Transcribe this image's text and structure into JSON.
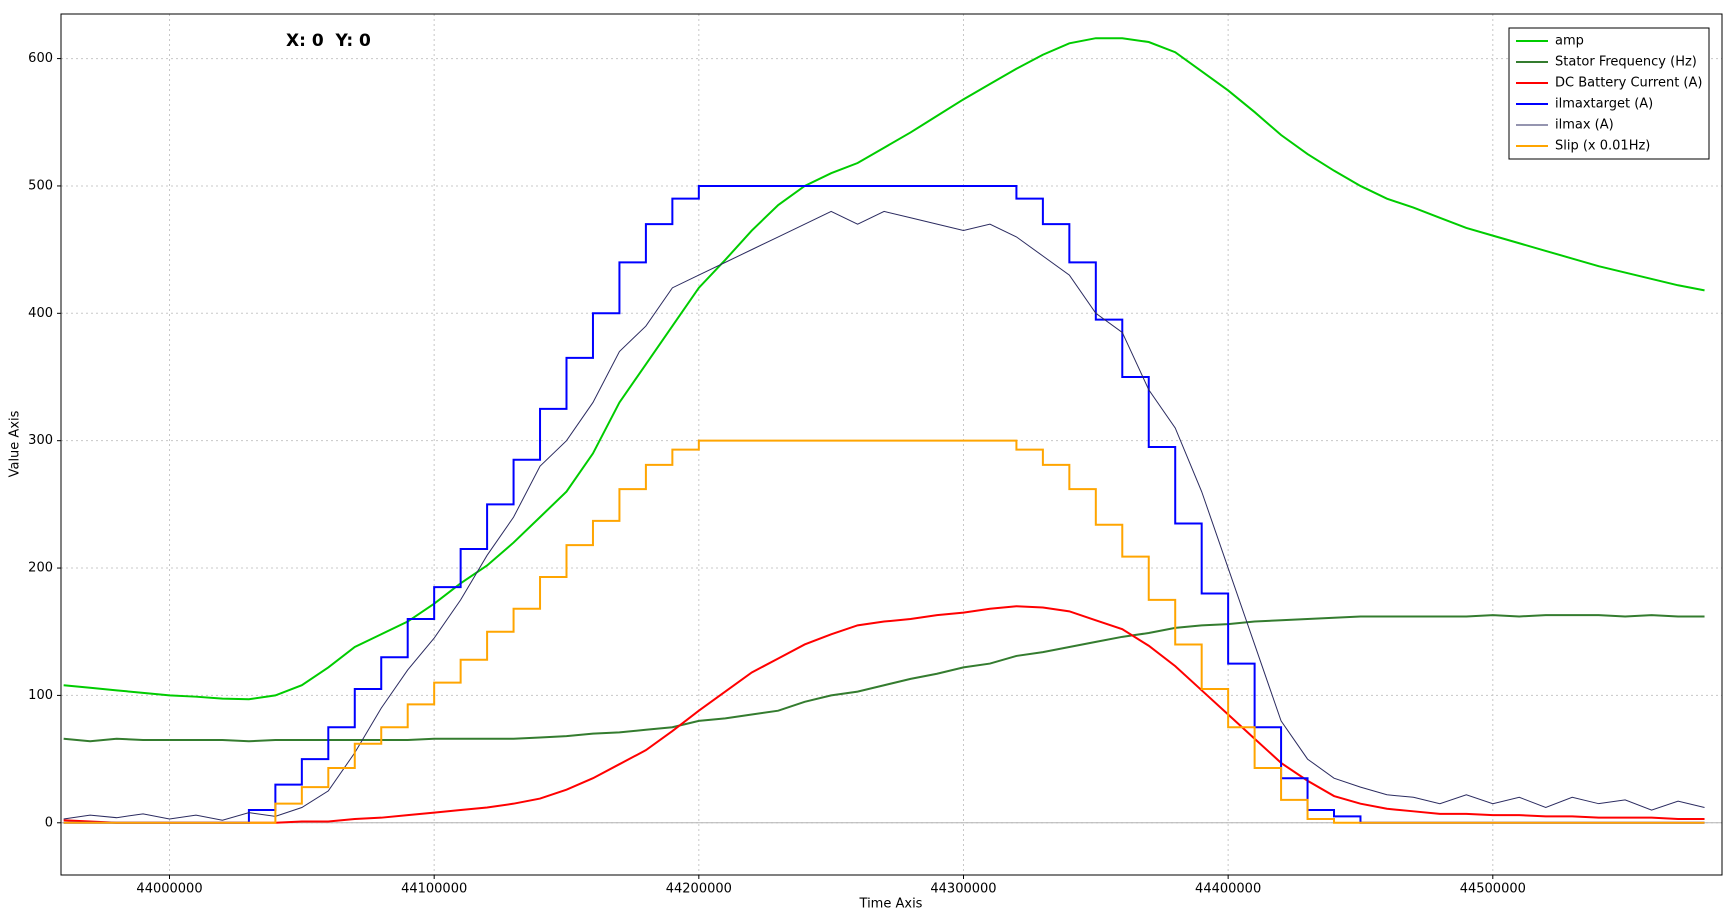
{
  "chart_data": {
    "type": "line",
    "title": "X: 0  Y: 0",
    "x_label": "Time Axis",
    "y_label": "Value Axis",
    "x": [
      43960000,
      43970000,
      43980000,
      43990000,
      44000000,
      44010000,
      44020000,
      44030000,
      44040000,
      44050000,
      44060000,
      44070000,
      44080000,
      44090000,
      44100000,
      44110000,
      44120000,
      44130000,
      44140000,
      44150000,
      44160000,
      44170000,
      44180000,
      44190000,
      44200000,
      44210000,
      44220000,
      44230000,
      44240000,
      44250000,
      44260000,
      44270000,
      44280000,
      44290000,
      44300000,
      44310000,
      44320000,
      44330000,
      44340000,
      44350000,
      44360000,
      44370000,
      44380000,
      44390000,
      44400000,
      44410000,
      44420000,
      44430000,
      44440000,
      44450000,
      44460000,
      44470000,
      44480000,
      44490000,
      44500000,
      44510000,
      44520000,
      44530000,
      44540000,
      44550000,
      44560000,
      44570000,
      44580000
    ],
    "series": [
      {
        "name": "amp",
        "color": "#00cc00",
        "width": 2,
        "values": [
          108,
          106,
          104,
          102,
          100,
          99,
          97.5,
          97,
          100,
          108,
          122,
          138,
          148,
          158,
          172,
          188,
          202,
          220,
          240,
          260,
          290,
          330,
          360,
          390,
          420,
          442,
          465,
          485,
          500,
          510,
          518,
          530,
          542,
          555,
          568,
          580,
          592,
          603,
          612,
          616,
          616,
          613,
          605,
          590,
          575,
          558,
          540,
          525,
          512,
          500,
          490,
          483,
          475,
          467,
          461,
          455,
          449,
          443,
          437,
          432,
          427,
          422,
          418
        ]
      },
      {
        "name": "Stator Frequency (Hz)",
        "color": "#347c2f",
        "width": 2,
        "values": [
          66,
          64,
          66,
          65,
          65,
          65,
          65,
          64,
          65,
          65,
          65,
          65,
          65,
          65,
          66,
          66,
          66,
          66,
          67,
          68,
          70,
          71,
          73,
          75,
          80,
          82,
          85,
          88,
          95,
          100,
          103,
          108,
          113,
          117,
          122,
          125,
          131,
          134,
          138,
          142,
          146,
          149,
          153,
          155,
          156,
          158,
          159,
          160,
          161,
          162,
          162,
          162,
          162,
          162,
          163,
          162,
          163,
          163,
          163,
          162,
          163,
          162,
          162
        ]
      },
      {
        "name": "DC Battery Current (A)",
        "color": "#ff0000",
        "width": 2,
        "values": [
          2,
          1,
          0,
          0,
          0,
          0,
          0,
          0,
          0,
          1,
          1,
          3,
          4,
          6,
          8,
          10,
          12,
          15,
          19,
          26,
          35,
          46,
          57,
          72,
          88,
          103,
          118,
          129,
          140,
          148,
          155,
          158,
          160,
          163,
          165,
          168,
          170,
          169,
          166,
          159,
          152,
          139,
          123,
          104,
          85,
          66,
          47,
          33,
          21,
          15,
          11,
          9,
          7,
          7,
          6,
          6,
          5,
          5,
          4,
          4,
          4,
          3,
          3
        ]
      },
      {
        "name": "ilmaxtarget (A)",
        "color": "#0000ff",
        "width": 2,
        "drawstyle": "steps-post",
        "values": [
          0,
          0,
          0,
          0,
          0,
          0,
          0,
          10,
          30,
          50,
          75,
          105,
          130,
          160,
          185,
          215,
          250,
          285,
          325,
          365,
          400,
          440,
          470,
          490,
          500,
          500,
          500,
          500,
          500,
          500,
          500,
          500,
          500,
          500,
          500,
          500,
          490,
          470,
          440,
          395,
          350,
          295,
          235,
          180,
          125,
          75,
          35,
          10,
          5,
          0,
          0,
          0,
          0,
          0,
          0,
          0,
          0,
          0,
          0,
          0,
          0,
          0,
          0
        ]
      },
      {
        "name": "ilmax (A)",
        "color": "#2b2b60",
        "width": 1,
        "values": [
          3,
          6,
          4,
          7,
          3,
          6,
          2,
          8,
          5,
          12,
          25,
          55,
          90,
          120,
          145,
          175,
          210,
          240,
          280,
          300,
          330,
          370,
          390,
          420,
          430,
          440,
          450,
          460,
          470,
          480,
          470,
          480,
          475,
          470,
          465,
          470,
          460,
          445,
          430,
          400,
          385,
          340,
          310,
          260,
          200,
          140,
          80,
          50,
          35,
          28,
          22,
          20,
          15,
          22,
          15,
          20,
          12,
          20,
          15,
          18,
          10,
          17,
          12
        ]
      },
      {
        "name": "Slip (x 0.01Hz)",
        "color": "#ffa500",
        "width": 2,
        "drawstyle": "steps-post",
        "values": [
          0,
          0,
          0,
          0,
          0,
          0,
          0,
          0,
          15,
          28,
          43,
          62,
          75,
          93,
          110,
          128,
          150,
          168,
          193,
          218,
          237,
          262,
          281,
          293,
          300,
          300,
          300,
          300,
          300,
          300,
          300,
          300,
          300,
          300,
          300,
          300,
          293,
          281,
          262,
          234,
          209,
          175,
          140,
          105,
          75,
          43,
          18,
          3,
          0,
          0,
          0,
          0,
          0,
          0,
          0,
          0,
          0,
          0,
          0,
          0,
          0,
          0,
          0
        ]
      }
    ],
    "xlim": [
      43959000,
      44586600
    ],
    "ylim": [
      -41,
      635
    ],
    "xticks": [
      44000000,
      44100000,
      44200000,
      44300000,
      44400000,
      44500000
    ],
    "yticks": [
      0,
      100,
      200,
      300,
      400,
      500,
      600
    ],
    "grid": true,
    "legend": "upper right"
  }
}
